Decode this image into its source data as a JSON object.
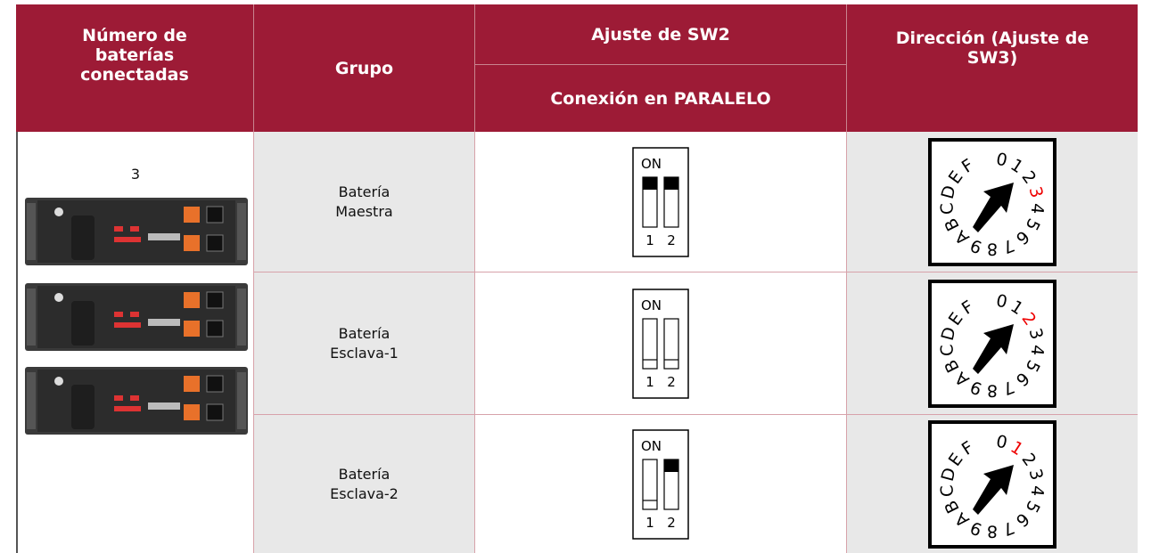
{
  "header": {
    "batteries": "Número de baterías conectadas",
    "group": "Grupo",
    "sw2": "Ajuste de SW2",
    "sw2_sub": "Conexión en PARALELO",
    "sw3": "Dirección (Ajuste de SW3)"
  },
  "battery_count": "3",
  "rows": [
    {
      "group": "Batería Maestra",
      "switch": {
        "label": "ON",
        "numbers": [
          "1",
          "2"
        ],
        "on": [
          true,
          true
        ]
      },
      "dial": {
        "digits": [
          "0",
          "1",
          "2",
          "3",
          "4",
          "5",
          "6",
          "7",
          "8",
          "9",
          "A",
          "B",
          "C",
          "D",
          "E",
          "F"
        ],
        "selected": 3
      }
    },
    {
      "group": "Batería Esclava-1",
      "switch": {
        "label": "ON",
        "numbers": [
          "1",
          "2"
        ],
        "on": [
          false,
          false
        ]
      },
      "dial": {
        "digits": [
          "0",
          "1",
          "2",
          "3",
          "4",
          "5",
          "6",
          "7",
          "8",
          "9",
          "A",
          "B",
          "C",
          "D",
          "E",
          "F"
        ],
        "selected": 2
      }
    },
    {
      "group": "Batería Esclava-2",
      "switch": {
        "label": "ON",
        "numbers": [
          "1",
          "2"
        ],
        "on": [
          false,
          true
        ]
      },
      "dial": {
        "digits": [
          "0",
          "1",
          "2",
          "3",
          "4",
          "5",
          "6",
          "7",
          "8",
          "9",
          "A",
          "B",
          "C",
          "D",
          "E",
          "F"
        ],
        "selected": 1
      }
    }
  ]
}
